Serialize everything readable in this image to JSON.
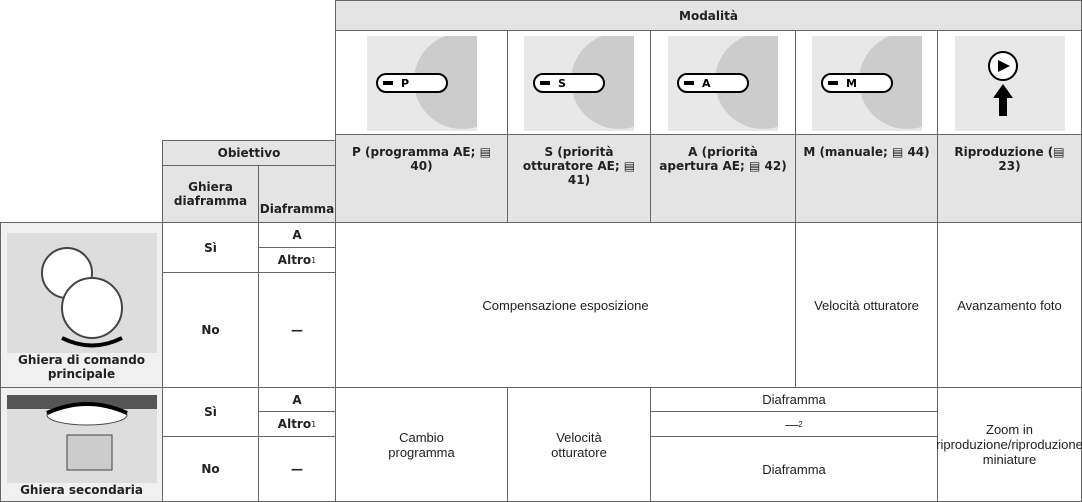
{
  "header": {
    "modalita": "Modalità",
    "obiettivo": "Obiettivo",
    "ghiera_diaframma": "Ghiera diaframma",
    "diaframma": "Diaframma"
  },
  "modes": [
    {
      "icon": "P",
      "label": "P (programma AE; ▤ 40)"
    },
    {
      "icon": "S",
      "label": "S (priorità otturatore AE; ▤ 41)"
    },
    {
      "icon": "A",
      "label": "A (priorità apertura AE; ▤ 42)"
    },
    {
      "icon": "M",
      "label": "M (manuale; ▤ 44)"
    },
    {
      "label": "Riproduzione (▤ 23)"
    }
  ],
  "rows": [
    {
      "control": "Ghiera di comando principale",
      "si": "Sì",
      "a": "A",
      "altro": "Altro",
      "altro_note": "1",
      "no": "No",
      "dash": "—",
      "cells": {
        "psa": "Compensazione esposizione",
        "m": "Velocità otturatore",
        "play": "Avanzamento foto"
      }
    },
    {
      "control": "Ghiera secondaria",
      "si": "Sì",
      "a": "A",
      "altro": "Altro",
      "altro_note": "1",
      "no": "No",
      "dash": "—",
      "cells": {
        "p": "Cambio programma",
        "s": "Velocità otturatore",
        "am_a": "Diaframma",
        "am_altro": "—",
        "am_altro_note": "2",
        "am_no": "Diaframma",
        "play": "Zoom in riproduzione/riproduzione miniature"
      }
    }
  ]
}
